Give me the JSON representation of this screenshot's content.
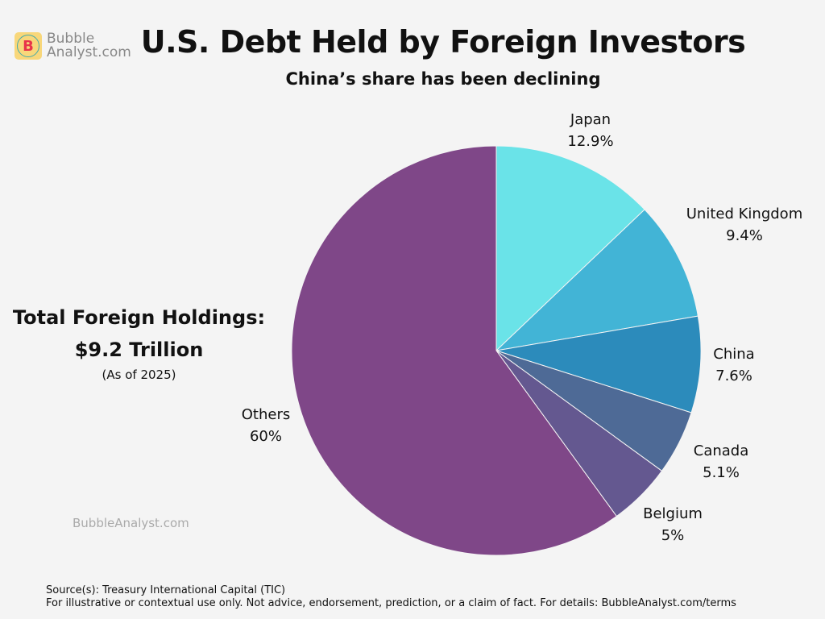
{
  "brand": {
    "logo_letter": "B",
    "logo_line1": "Bubble",
    "logo_line2": "Analyst.com"
  },
  "chart_data": {
    "type": "pie",
    "title": "U.S. Debt Held by Foreign Investors",
    "subtitle": "China’s share has been declining",
    "start_angle": "12 o'clock, clockwise",
    "slices": [
      {
        "label": "Japan",
        "value": 12.9,
        "value_label": "12.9%",
        "color": "#6ae3e8"
      },
      {
        "label": "United Kingdom",
        "value": 9.4,
        "value_label": "9.4%",
        "color": "#42b4d6"
      },
      {
        "label": "China",
        "value": 7.6,
        "value_label": "7.6%",
        "color": "#2c8bbb"
      },
      {
        "label": "Canada",
        "value": 5.1,
        "value_label": "5.1%",
        "color": "#4e6a96"
      },
      {
        "label": "Belgium",
        "value": 5,
        "value_label": "5%",
        "color": "#645890"
      },
      {
        "label": "Others",
        "value": 60,
        "value_label": "60%",
        "color": "#7f4788"
      }
    ]
  },
  "annotation": {
    "line1": "Total Foreign Holdings:",
    "line2": "$9.2 Trillion",
    "asof": "(As of 2025)"
  },
  "watermark": "BubbleAnalyst.com",
  "footer": {
    "source": "Source(s): Treasury International Capital (TIC)",
    "disclaimer": "For illustrative or contextual use only. Not advice, endorsement, prediction, or a claim of fact. For details: BubbleAnalyst.com/terms"
  }
}
